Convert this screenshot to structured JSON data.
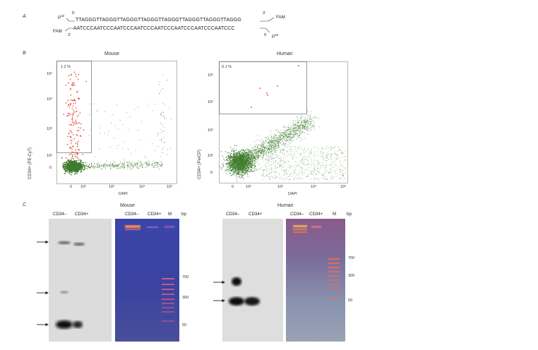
{
  "panel_labels": {
    "a": "A",
    "b": "B",
    "c": "C"
  },
  "panel_a": {
    "top_left": "P",
    "top_left_sup": "32",
    "top_5": "5'",
    "top_seq": "TTAGGGTTAGGGTTAGGGTTAGGGTTAGGGTTAGGGTTAGGGTTAGGG",
    "top_3": "3'",
    "top_right": "FAM",
    "bottom_left": "FAM",
    "bottom_3": "3'",
    "bottom_seq": "AATCCCAATCCCAATCCCAATCCCAATCCCAATCCCAATCCCAATCCC",
    "bottom_5": "5'",
    "bottom_right": "P",
    "bottom_right_sup": "32"
  },
  "panel_b": {
    "mouse": {
      "title": "Mouse",
      "gate_label": "1.2 %",
      "ylabel": "CD34+ (PE-Cy7)",
      "xlabel": "DAPI",
      "y_ticks": [
        "10⁵",
        "10⁴",
        "10³",
        "10²",
        "0"
      ],
      "x_ticks": [
        "0",
        "10²",
        "10³",
        "10⁴",
        "10⁵"
      ]
    },
    "human": {
      "title": "Human",
      "gate_label": "0.1 %",
      "ylabel": "CD34+ (PerCP)",
      "xlabel": "DAPI",
      "y_ticks": [
        "10⁵",
        "10⁴",
        "10³",
        "10²",
        "0"
      ],
      "x_ticks": [
        "0",
        "10²",
        "10³",
        "10⁴",
        "10⁵"
      ]
    },
    "colors": {
      "gated": "#e0301e",
      "ungated": "#3f7d2e"
    }
  },
  "panel_c": {
    "mouse": {
      "title": "Mouse",
      "blot_lanes": [
        "CD34–",
        "CD34+"
      ],
      "gel_lanes": [
        "CD34–",
        "CD34+",
        "M"
      ],
      "bp_label": "bp",
      "markers": [
        "700",
        "300",
        "50"
      ]
    },
    "human": {
      "title": "Human",
      "blot_lanes": [
        "CD34–",
        "CD34+"
      ],
      "gel_lanes": [
        "CD34–",
        "CD34+",
        "M"
      ],
      "bp_label": "bp",
      "markers": [
        "700",
        "300",
        "50"
      ]
    }
  }
}
